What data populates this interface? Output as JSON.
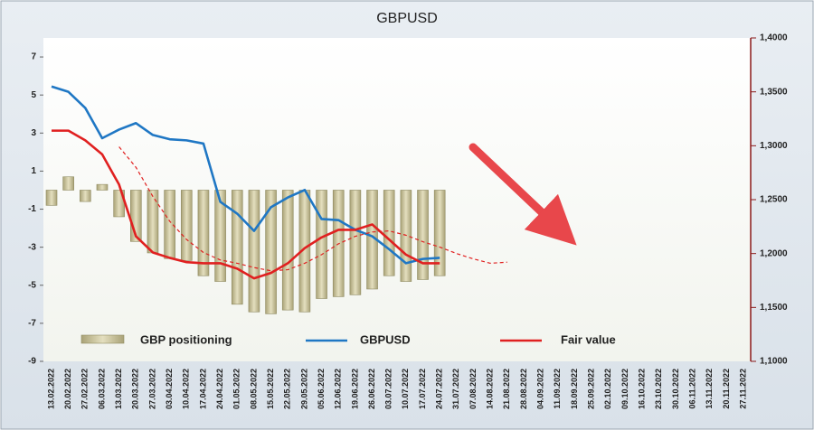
{
  "chart_data": {
    "type": "combo",
    "title": "GBPUSD",
    "categories": [
      "13.02.2022",
      "20.02.2022",
      "27.02.2022",
      "06.03.2022",
      "13.03.2022",
      "20.03.2022",
      "27.03.2022",
      "03.04.2022",
      "10.04.2022",
      "17.04.2022",
      "24.04.2022",
      "01.05.2022",
      "08.05.2022",
      "15.05.2022",
      "22.05.2022",
      "29.05.2022",
      "05.06.2022",
      "12.06.2022",
      "19.06.2022",
      "26.06.2022",
      "03.07.2022",
      "10.07.2022",
      "17.07.2022",
      "24.07.2022",
      "31.07.2022",
      "07.08.2022",
      "14.08.2022",
      "21.08.2022",
      "28.08.2022",
      "04.09.2022",
      "11.09.2022",
      "18.09.2022",
      "25.09.2022",
      "02.10.2022",
      "09.10.2022",
      "16.10.2022",
      "23.10.2022",
      "30.10.2022",
      "06.11.2022",
      "13.11.2022",
      "20.11.2022",
      "27.11.2022"
    ],
    "ylim": [
      -9,
      8
    ],
    "yticks": [
      -9,
      -7,
      -5,
      -3,
      -1,
      1,
      3,
      5,
      7
    ],
    "y2lim": [
      1.1,
      1.4
    ],
    "y2ticks": [
      {
        "value": 1.1,
        "label": "1,1000"
      },
      {
        "value": 1.15,
        "label": "1,1500"
      },
      {
        "value": 1.2,
        "label": "1,2000"
      },
      {
        "value": 1.25,
        "label": "1,2500"
      },
      {
        "value": 1.3,
        "label": "1,3000"
      },
      {
        "value": 1.35,
        "label": "1,3500"
      },
      {
        "value": 1.4,
        "label": "1,4000"
      }
    ],
    "series": [
      {
        "name": "GBP positioning",
        "type": "bar",
        "axis": "y",
        "color": "#c9c39b",
        "values": [
          -0.8,
          0.7,
          -0.6,
          0.3,
          -1.4,
          -2.7,
          -3.3,
          -3.6,
          -3.7,
          -4.5,
          -4.8,
          -6.0,
          -6.4,
          -6.5,
          -6.3,
          -6.4,
          -5.7,
          -5.6,
          -5.5,
          -5.2,
          -4.5,
          -4.8,
          -4.7,
          -4.5,
          null,
          null,
          null,
          null,
          null,
          null,
          null,
          null,
          null,
          null,
          null,
          null,
          null,
          null,
          null,
          null,
          null,
          null
        ]
      },
      {
        "name": "GBPUSD",
        "type": "line",
        "axis": "y2",
        "color": "#1f77c4",
        "values": [
          1.355,
          1.35,
          1.335,
          1.307,
          1.315,
          1.321,
          1.31,
          1.306,
          1.305,
          1.302,
          1.248,
          1.237,
          1.221,
          1.243,
          1.252,
          1.259,
          1.232,
          1.231,
          1.222,
          1.216,
          1.204,
          1.191,
          1.195,
          1.196,
          null,
          null,
          null,
          null,
          null,
          null,
          null,
          null,
          null,
          null,
          null,
          null,
          null,
          null,
          null,
          null,
          null,
          null
        ]
      },
      {
        "name": "Fair value",
        "type": "line",
        "axis": "y2",
        "color": "#e02020",
        "values": [
          1.314,
          1.314,
          1.305,
          1.292,
          1.264,
          1.216,
          1.201,
          1.196,
          1.192,
          1.191,
          1.191,
          1.186,
          1.177,
          1.182,
          1.191,
          1.205,
          1.215,
          1.222,
          1.222,
          1.227,
          1.213,
          1.199,
          1.191,
          1.191,
          null,
          null,
          null,
          null,
          null,
          null,
          null,
          null,
          null,
          null,
          null,
          null,
          null,
          null,
          null,
          null,
          null,
          null
        ]
      },
      {
        "type": "line",
        "axis": "y2",
        "color": "#e02020",
        "dashed": true,
        "values": [
          null,
          null,
          null,
          null,
          1.299,
          1.28,
          1.253,
          1.23,
          1.213,
          1.201,
          1.194,
          1.191,
          1.187,
          1.184,
          1.185,
          1.191,
          1.199,
          1.209,
          1.216,
          1.22,
          1.221,
          1.217,
          1.211,
          1.206,
          1.2,
          1.195,
          1.191,
          1.192,
          null,
          null,
          null,
          null,
          null,
          null,
          null,
          null,
          null,
          null,
          null,
          null,
          null,
          null
        ]
      }
    ]
  }
}
